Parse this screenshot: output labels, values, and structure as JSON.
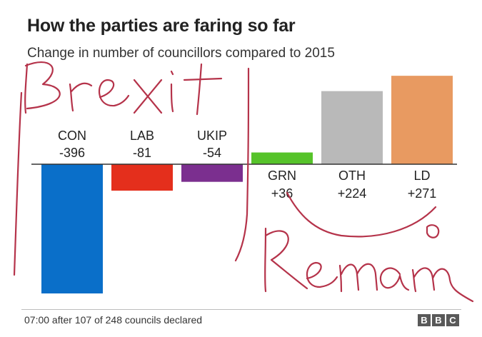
{
  "title": "How the parties are faring so far",
  "subtitle": "Change in number of councillors compared to 2015",
  "footer": {
    "note": "07:00 after 107 of 248 councils declared",
    "logo": [
      "B",
      "B",
      "C"
    ]
  },
  "handwriting": {
    "left": "Brexit",
    "right": "Remain"
  },
  "chart_data": {
    "type": "bar",
    "title": "How the parties are faring so far",
    "subtitle": "Change in number of councillors compared to 2015",
    "categories": [
      "CON",
      "LAB",
      "UKIP",
      "GRN",
      "OTH",
      "LD"
    ],
    "values": [
      -396,
      -81,
      -54,
      36,
      224,
      271
    ],
    "value_labels": [
      "-396",
      "-81",
      "-54",
      "+36",
      "+224",
      "+271"
    ],
    "colors": [
      "#0a6fc9",
      "#e42f1c",
      "#7b2f8f",
      "#56c32a",
      "#b9b9b9",
      "#e89a61"
    ],
    "ylim": [
      -400,
      280
    ],
    "grid": false,
    "legend": "none"
  }
}
